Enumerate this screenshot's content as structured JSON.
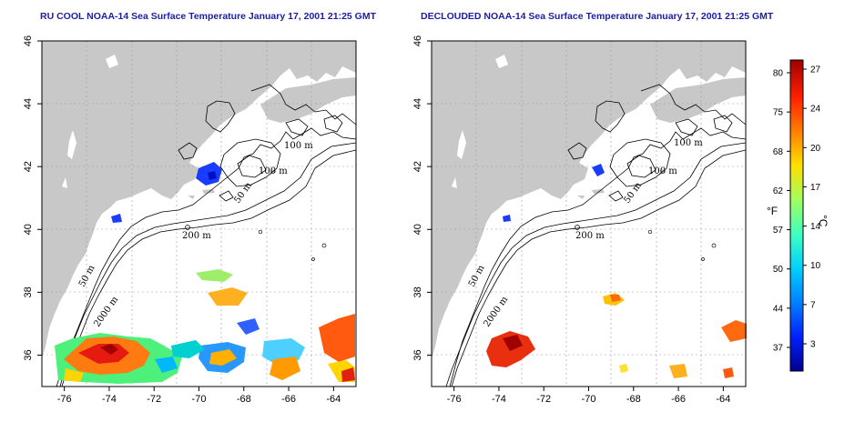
{
  "titles": {
    "left": "RU COOL NOAA-14 Sea Surface Temperature January 17, 2001 21:25 GMT",
    "right": "DECLOUDED NOAA-14 Sea Surface Temperature January 17, 2001 21:25 GMT"
  },
  "map": {
    "lon_range": [
      -77,
      -63
    ],
    "lat_range": [
      35,
      46
    ],
    "lon_ticks": [
      -76,
      -74,
      -72,
      -70,
      -68,
      -66,
      -64
    ],
    "lon_tick_labels": [
      "-76",
      "-74",
      "-72",
      "-70",
      "-68",
      "-66",
      "-64"
    ],
    "lat_ticks": [
      36,
      38,
      40,
      42,
      44,
      46
    ],
    "lat_tick_labels": [
      "36",
      "38",
      "40",
      "42",
      "44",
      "46"
    ],
    "grid": true,
    "land_color": "#c8c8c8",
    "ocean_color": "#ffffff"
  },
  "contour_labels": {
    "c100a": "100 m",
    "c100b": "100 m",
    "c50a": "50 m",
    "c200": "200 m",
    "c50b": "50 m",
    "c2000": "2000 m"
  },
  "colorbar": {
    "fahrenheit_labels": [
      "80",
      "75",
      "68",
      "62",
      "57",
      "50",
      "44",
      "37"
    ],
    "celsius_labels": [
      "27",
      "24",
      "20",
      "17",
      "14",
      "10",
      "7",
      "3"
    ],
    "fahrenheit_unit": "°F",
    "celsius_unit": "°C",
    "colors": [
      "#00008f",
      "#0020ff",
      "#0080ff",
      "#00d0ff",
      "#40ffc0",
      "#a0ff60",
      "#ffe000",
      "#ff8000",
      "#ff2000",
      "#a00000"
    ]
  }
}
